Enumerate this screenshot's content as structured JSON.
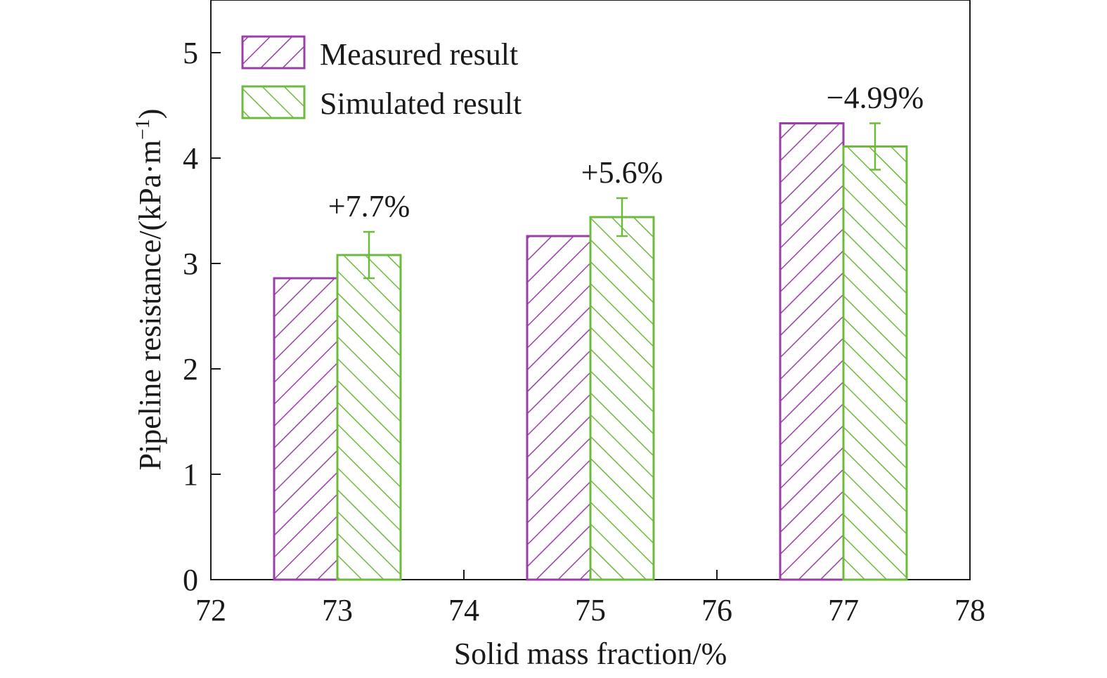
{
  "chart_data": {
    "type": "bar",
    "xlabel": "Solid mass fraction/%",
    "ylabel_main": "Pipeline resistance/(kPa·m",
    "ylabel_sup": "−1",
    "ylabel_close": ")",
    "xlim": [
      72,
      78
    ],
    "ylim": [
      0,
      5.5
    ],
    "xticks": [
      72,
      73,
      74,
      75,
      76,
      77,
      78
    ],
    "yticks": [
      0,
      1,
      2,
      3,
      4,
      5
    ],
    "grid": false,
    "legend_position": "top-left",
    "categories": [
      73,
      75,
      77
    ],
    "series": [
      {
        "name": "Measured result",
        "color": "#9b3fa8",
        "hatch": "forward-diagonal",
        "values": [
          2.86,
          3.26,
          4.33
        ]
      },
      {
        "name": "Simulated result",
        "color": "#6dbb3c",
        "hatch": "backward-diagonal",
        "values": [
          3.08,
          3.44,
          4.11
        ],
        "error": [
          0.22,
          0.18,
          0.22
        ]
      }
    ],
    "annotations": [
      {
        "x": 73,
        "text": "+7.7%"
      },
      {
        "x": 75,
        "text": "+5.6%"
      },
      {
        "x": 77,
        "text": "−4.99%"
      }
    ]
  }
}
